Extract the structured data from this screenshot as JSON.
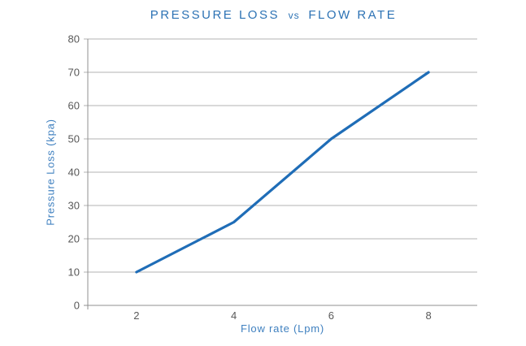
{
  "chart": {
    "title_parts": [
      "PRESSURE LOSS",
      "vs",
      "FLOW RATE"
    ]
  },
  "chart_data": {
    "type": "line",
    "title": "PRESSURE LOSS vs FLOW RATE",
    "xlabel": "Flow rate (Lpm)",
    "ylabel": "Pressure Loss (kpa)",
    "series": [
      {
        "name": "Pressure Loss",
        "x": [
          2,
          4,
          6,
          8
        ],
        "values": [
          10,
          25,
          50,
          70
        ]
      }
    ],
    "xlim": [
      1,
      9
    ],
    "ylim": [
      0,
      80
    ],
    "x_ticks": [
      2,
      4,
      6,
      8
    ],
    "y_ticks": [
      0,
      10,
      20,
      30,
      40,
      50,
      60,
      70,
      80
    ],
    "grid": "horizontal",
    "legend": "none",
    "colors": {
      "line": "#1f6db7",
      "title_text": "#2c72b4",
      "axis_label_text": "#4081c0",
      "tick_text": "#595959",
      "gridline": "#b3b3b3",
      "axis_line": "#8f8f8f",
      "background": "#ffffff"
    }
  }
}
